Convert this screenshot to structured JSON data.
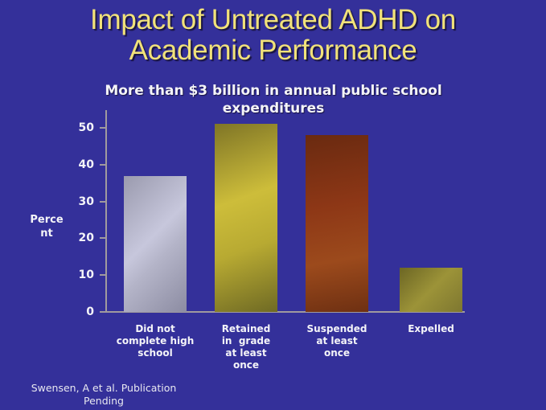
{
  "slide": {
    "title_line1": "Impact of Untreated ADHD on",
    "title_line2": "Academic Performance",
    "subtitle_line1": "More than $3 billion in annual public school",
    "subtitle_line2": "expenditures",
    "source_line1": "Swensen, A et al. Publication",
    "source_line2": "Pending",
    "background_color": "#34309a",
    "title_color": "#f1e27a"
  },
  "chart_data": {
    "type": "bar",
    "title": "Impact of Untreated ADHD on Academic Performance",
    "subtitle": "More than $3 billion in annual public school expenditures",
    "xlabel": "",
    "ylabel": "Percent",
    "ylabel_lines": [
      "Perce",
      "nt"
    ],
    "ylim": [
      0,
      50
    ],
    "yticks": [
      "0",
      "10",
      "20",
      "30",
      "40",
      "50"
    ],
    "grid": false,
    "legend": null,
    "categories": [
      "Did not complete high school",
      "Retained in grade at least once",
      "Suspended at least once",
      "Expelled"
    ],
    "category_lines": [
      [
        "Did not",
        "complete high",
        "school"
      ],
      [
        "Retained",
        "in  grade",
        "at least",
        "once"
      ],
      [
        "Suspended",
        "at least",
        "once"
      ],
      [
        "Expelled"
      ]
    ],
    "values": [
      37,
      51,
      48,
      12
    ],
    "bar_colors": [
      "#b8b8cc",
      "#c2b336",
      "#8a3716",
      "#8c8432"
    ],
    "source": "Swensen, A et al. Publication Pending"
  }
}
